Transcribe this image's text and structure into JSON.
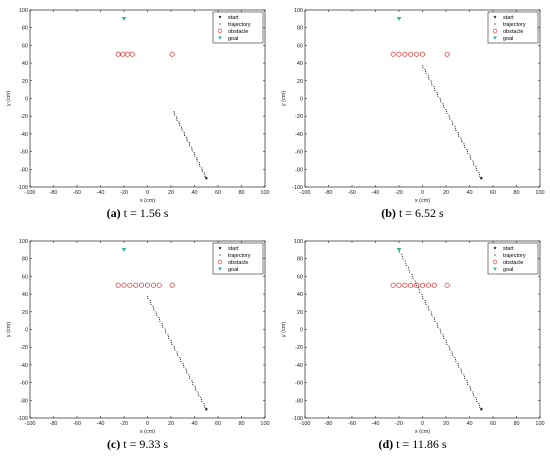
{
  "colors": {
    "start": "#000000",
    "trajectory": "#000000",
    "obstacle": "#e8221b",
    "goal": "#2bb3a2",
    "axes": "#000000"
  },
  "chart_data": [
    {
      "type": "scatter",
      "caption_letter": "(a)",
      "caption_text": "t = 1.56 s",
      "xlabel": "x (cm)",
      "ylabel": "y (cm)",
      "xlim": [
        -100,
        100
      ],
      "ylim": [
        -100,
        100
      ],
      "xticks": [
        "-100",
        "-80",
        "-60",
        "-40",
        "-20",
        "0",
        "20",
        "40",
        "60",
        "80",
        "100"
      ],
      "yticks": [
        "100",
        "80",
        "60",
        "40",
        "20",
        "0",
        "-20",
        "-40",
        "-60",
        "-80",
        "-100"
      ],
      "grid": false,
      "legend_position": "top-right",
      "legend": [
        "start",
        "trajectory",
        "obstacle",
        "goal"
      ],
      "start": [
        50,
        -90
      ],
      "goal": [
        -20,
        90
      ],
      "obstacles": [
        [
          -25,
          50
        ],
        [
          -21,
          50
        ],
        [
          -17,
          50
        ],
        [
          -13,
          50
        ],
        [
          21,
          50
        ]
      ],
      "trajectory": {
        "from": [
          50,
          -90
        ],
        "to": [
          22,
          -15
        ],
        "points": 40
      }
    },
    {
      "type": "scatter",
      "caption_letter": "(b)",
      "caption_text": "t = 6.52 s",
      "xlabel": "x (cm)",
      "ylabel": "y (cm)",
      "xlim": [
        -100,
        100
      ],
      "ylim": [
        -100,
        100
      ],
      "xticks": [
        "-100",
        "-80",
        "-60",
        "-40",
        "-20",
        "0",
        "20",
        "40",
        "60",
        "80",
        "100"
      ],
      "yticks": [
        "100",
        "80",
        "60",
        "40",
        "20",
        "0",
        "-20",
        "-40",
        "-60",
        "-80",
        "-100"
      ],
      "grid": false,
      "legend_position": "top-right",
      "legend": [
        "start",
        "trajectory",
        "obstacle",
        "goal"
      ],
      "start": [
        50,
        -90
      ],
      "goal": [
        -20,
        90
      ],
      "obstacles": [
        [
          -25,
          50
        ],
        [
          -20,
          50
        ],
        [
          -15,
          50
        ],
        [
          -10,
          50
        ],
        [
          -5,
          50
        ],
        [
          0,
          50
        ],
        [
          21,
          50
        ]
      ],
      "trajectory": {
        "from": [
          50,
          -90
        ],
        "to": [
          0,
          37
        ],
        "points": 60
      }
    },
    {
      "type": "scatter",
      "caption_letter": "(c)",
      "caption_text": "t = 9.33 s",
      "xlabel": "x (cm)",
      "ylabel": "y (cm)",
      "xlim": [
        -100,
        100
      ],
      "ylim": [
        -100,
        100
      ],
      "xticks": [
        "-100",
        "-80",
        "-60",
        "-40",
        "-20",
        "0",
        "20",
        "40",
        "60",
        "80",
        "100"
      ],
      "yticks": [
        "100",
        "80",
        "60",
        "40",
        "20",
        "0",
        "-20",
        "-40",
        "-60",
        "-80",
        "-100"
      ],
      "grid": false,
      "legend_position": "top-right",
      "legend": [
        "start",
        "trajectory",
        "obstacle",
        "goal"
      ],
      "start": [
        50,
        -90
      ],
      "goal": [
        -20,
        90
      ],
      "obstacles": [
        [
          -25,
          50
        ],
        [
          -20,
          50
        ],
        [
          -15,
          50
        ],
        [
          -10,
          50
        ],
        [
          -5,
          50
        ],
        [
          0,
          50
        ],
        [
          5,
          50
        ],
        [
          10,
          50
        ],
        [
          21,
          50
        ]
      ],
      "trajectory": {
        "from": [
          50,
          -90
        ],
        "to": [
          0,
          37
        ],
        "points": 60
      }
    },
    {
      "type": "scatter",
      "caption_letter": "(d)",
      "caption_text": "t = 11.86 s",
      "xlabel": "x (cm)",
      "ylabel": "y (cm)",
      "xlim": [
        -100,
        100
      ],
      "ylim": [
        -100,
        100
      ],
      "xticks": [
        "-100",
        "-80",
        "-60",
        "-40",
        "-20",
        "0",
        "20",
        "40",
        "60",
        "80",
        "100"
      ],
      "yticks": [
        "100",
        "80",
        "60",
        "40",
        "20",
        "0",
        "-20",
        "-40",
        "-60",
        "-80",
        "-100"
      ],
      "grid": false,
      "legend_position": "top-right",
      "legend": [
        "start",
        "trajectory",
        "obstacle",
        "goal"
      ],
      "start": [
        50,
        -90
      ],
      "goal": [
        -20,
        90
      ],
      "obstacles": [
        [
          -25,
          50
        ],
        [
          -20,
          50
        ],
        [
          -15,
          50
        ],
        [
          -10,
          50
        ],
        [
          -5,
          50
        ],
        [
          0,
          50
        ],
        [
          5,
          50
        ],
        [
          10,
          50
        ],
        [
          21,
          50
        ]
      ],
      "trajectory": {
        "from": [
          50,
          -90
        ],
        "to": [
          0,
          37
        ],
        "points": 60,
        "then": {
          "to": [
            -20,
            90
          ],
          "points": 22
        }
      }
    }
  ]
}
